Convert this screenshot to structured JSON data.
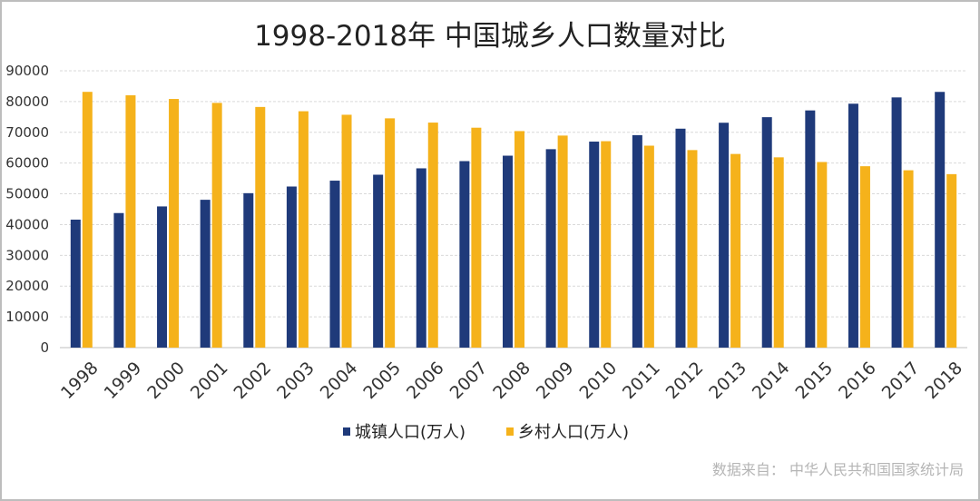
{
  "chart_data": {
    "type": "bar",
    "title": "1998-2018年 中国城乡人口数量对比",
    "categories": [
      "1998",
      "1999",
      "2000",
      "2001",
      "2002",
      "2003",
      "2004",
      "2005",
      "2006",
      "2007",
      "2008",
      "2009",
      "2010",
      "2011",
      "2012",
      "2013",
      "2014",
      "2015",
      "2016",
      "2017",
      "2018"
    ],
    "series": [
      {
        "name": "城镇人口(万人)",
        "color": "#1f3a7a",
        "values": [
          41608,
          43748,
          45906,
          48064,
          50212,
          52376,
          54283,
          56212,
          58288,
          60633,
          62403,
          64512,
          66978,
          69079,
          71182,
          73111,
          74916,
          77116,
          79298,
          81347,
          83137
        ]
      },
      {
        "name": "乡村人口(万人)",
        "color": "#f5b21b",
        "values": [
          83153,
          82038,
          80837,
          79563,
          78241,
          76851,
          75705,
          74544,
          73160,
          71496,
          70399,
          68938,
          67113,
          65656,
          64222,
          62961,
          61866,
          60346,
          58973,
          57661,
          56401
        ]
      }
    ],
    "ylim": [
      0,
      90000
    ],
    "yticks": [
      "0",
      "10000",
      "20000",
      "30000",
      "40000",
      "50000",
      "60000",
      "70000",
      "80000",
      "90000"
    ],
    "grid": true,
    "legend": "bottom",
    "xlabel": "",
    "ylabel": ""
  },
  "source_note": "数据来自：  中华人民共和国国家统计局"
}
